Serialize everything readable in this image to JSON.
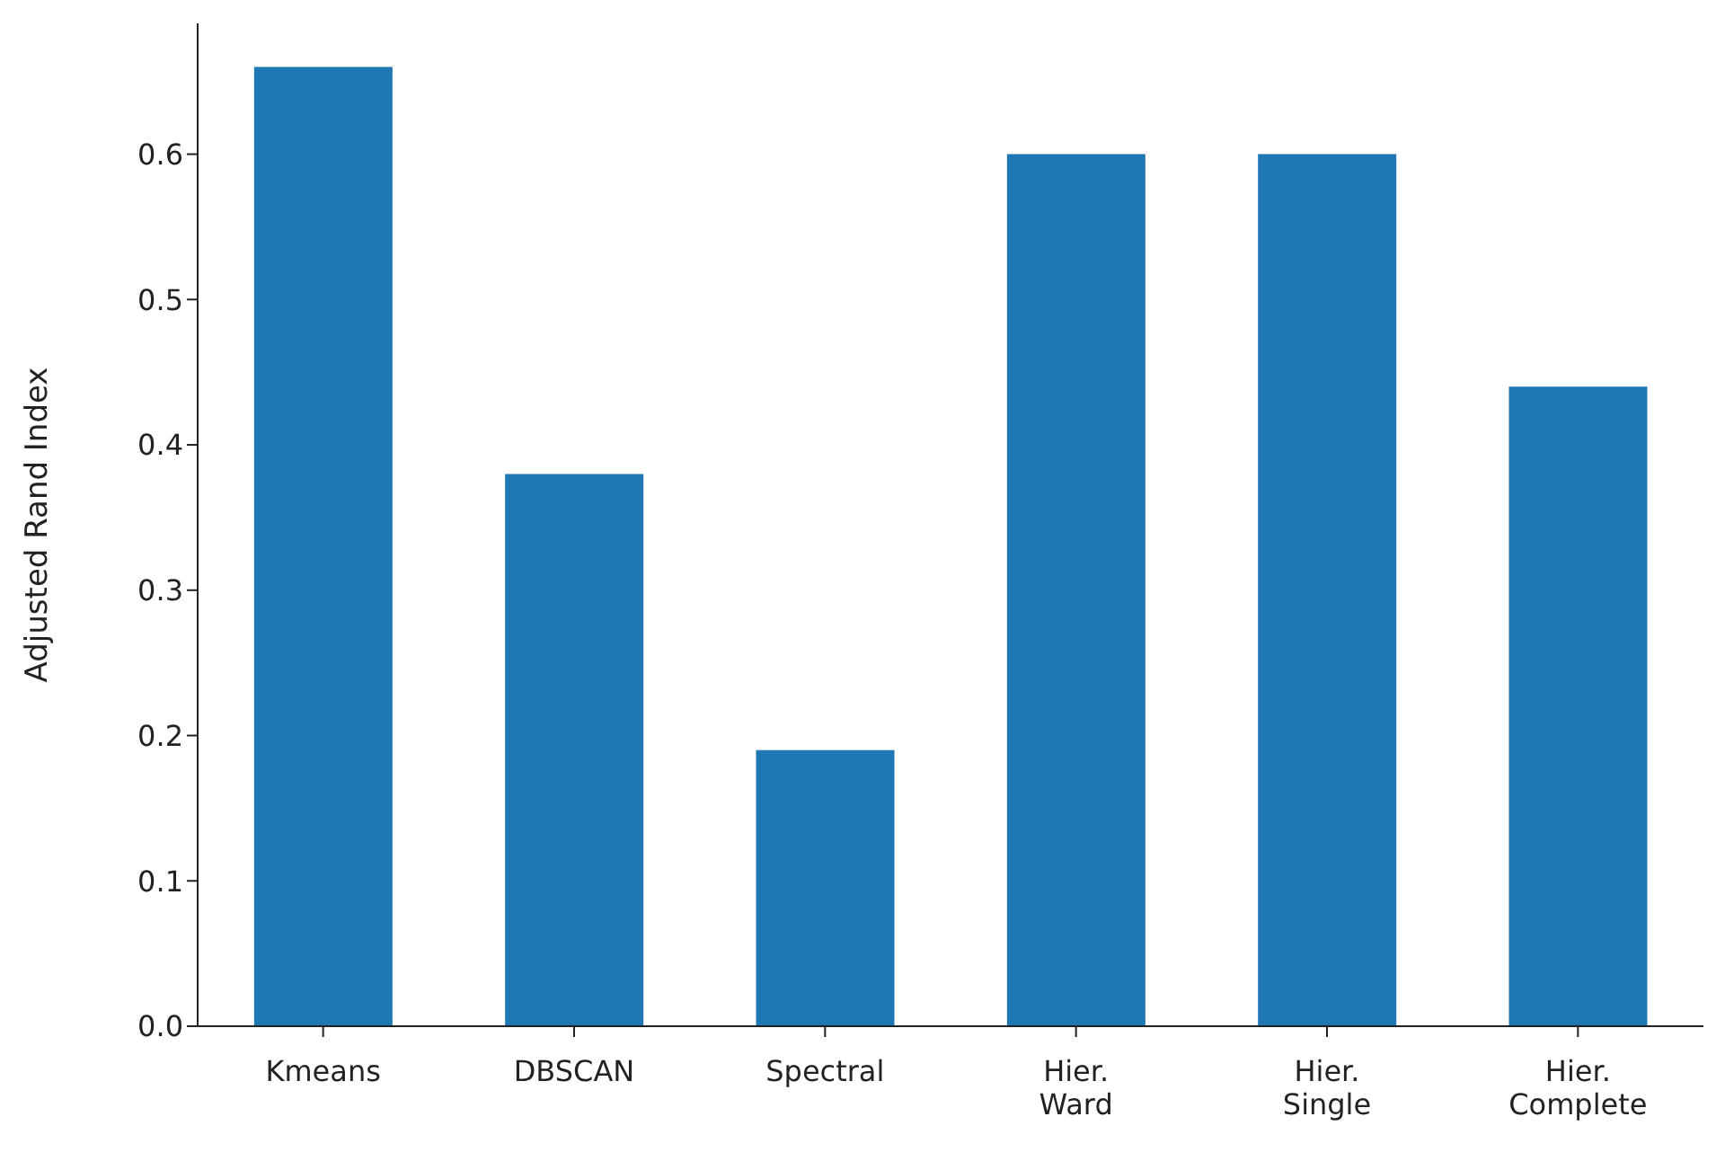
{
  "chart_data": {
    "type": "bar",
    "ylabel": "Adjusted Rand Index",
    "categories": [
      "Kmeans",
      "DBSCAN",
      "Spectral",
      "Hier.\nWard",
      "Hier.\nSingle",
      "Hier.\nComplete"
    ],
    "values": [
      0.66,
      0.38,
      0.19,
      0.6,
      0.6,
      0.44
    ],
    "color": "#1f77b4",
    "ylim": [
      0,
      0.69
    ],
    "yticks": [
      {
        "value": 0,
        "label": "0.0"
      },
      {
        "value": 0.1,
        "label": "0.1"
      },
      {
        "value": 0.2,
        "label": "0.2"
      },
      {
        "value": 0.3,
        "label": "0.3"
      },
      {
        "value": 0.4,
        "label": "0.4"
      },
      {
        "value": 0.5,
        "label": "0.5"
      },
      {
        "value": 0.6,
        "label": "0.6"
      }
    ],
    "grid": false
  }
}
